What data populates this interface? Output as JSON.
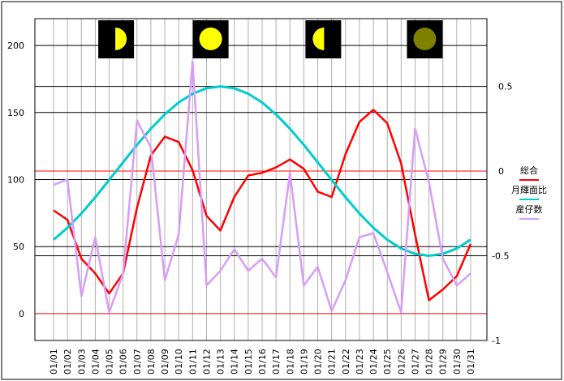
{
  "chart_data": {
    "type": "line",
    "title": "",
    "categories": [
      "01/01",
      "01/02",
      "01/03",
      "01/04",
      "01/05",
      "01/06",
      "01/07",
      "01/08",
      "01/09",
      "01/10",
      "01/11",
      "01/12",
      "01/13",
      "01/14",
      "01/15",
      "01/16",
      "01/17",
      "01/18",
      "01/19",
      "01/20",
      "01/21",
      "01/22",
      "01/23",
      "01/24",
      "01/25",
      "01/26",
      "01/27",
      "01/28",
      "01/29",
      "01/30",
      "01/31"
    ],
    "left_axis": {
      "ylim": [
        -20,
        220
      ],
      "ticks": [
        0,
        50,
        100,
        150,
        200
      ]
    },
    "right_axis": {
      "ylim": [
        -1,
        0.9
      ],
      "ticks": [
        -1,
        -0.5,
        0,
        0.5
      ],
      "tick_labels": [
        "-1",
        "-0.5",
        "0",
        "0.5"
      ]
    },
    "grid": true,
    "legend_position": "right",
    "series": [
      {
        "name": "総合",
        "axis": "left",
        "color": "#ff0000",
        "values": [
          77,
          70,
          41,
          30,
          15,
          30,
          79,
          118,
          132,
          128,
          107,
          73,
          62,
          87,
          103,
          105,
          109,
          115,
          108,
          91,
          87,
          119,
          143,
          152,
          142,
          112,
          59,
          10,
          18,
          28,
          52
        ]
      },
      {
        "name": "月輝面比",
        "axis": "right",
        "color": "#00cccc",
        "values": [
          -0.405,
          -0.335,
          -0.25,
          -0.155,
          -0.052,
          0.052,
          0.155,
          0.25,
          0.335,
          0.405,
          0.457,
          0.489,
          0.5,
          0.489,
          0.457,
          0.405,
          0.335,
          0.25,
          0.155,
          0.052,
          -0.052,
          -0.155,
          -0.25,
          -0.335,
          -0.405,
          -0.457,
          -0.489,
          -0.5,
          -0.489,
          -0.457,
          -0.405
        ]
      },
      {
        "name": "産仔数",
        "axis": "left",
        "color": "#d89cf6",
        "values": [
          96,
          100,
          13,
          57,
          1,
          30,
          144,
          124,
          25,
          59,
          188,
          21,
          32,
          48,
          32,
          41,
          27,
          105,
          21,
          35,
          2,
          25,
          57,
          60,
          31,
          1,
          138,
          98,
          41,
          21,
          30
        ]
      }
    ],
    "moon_phases": [
      {
        "phase": "first-quarter",
        "position_day": 5.5
      },
      {
        "phase": "full-moon",
        "position_day": 12.3
      },
      {
        "phase": "last-quarter",
        "position_day": 20.4
      },
      {
        "phase": "new-moon",
        "position_day": 27.7
      }
    ]
  }
}
